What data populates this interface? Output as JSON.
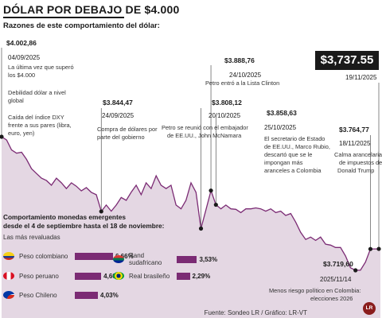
{
  "title": "DÓLAR POR DEBAJO DE $4.000",
  "subtitle": "Razones de este comportamiento del dólar:",
  "current_price": "$3,737.55",
  "annotations": {
    "start": {
      "value": "$4.002,86",
      "date": "04/09/2025",
      "notes": [
        "La última vez que superó",
        "los $4.000",
        "",
        "Debilidad dólar a nivel",
        "global",
        "",
        "Caída del índice DXY",
        "frente a sus pares (libra,",
        "euro, yen)"
      ]
    },
    "sep24": {
      "value": "$3.844,47",
      "date": "24/09/2025",
      "notes": [
        "Compra de dólares por",
        "parte del gobierno"
      ]
    },
    "oct20": {
      "value": "$3.808,12",
      "date": "20/10/2025",
      "notes": [
        "Petro se reunió con el embajador",
        "de EE.UU., John McNamara"
      ]
    },
    "oct24": {
      "value": "$3.888,76",
      "date": "24/10/2025",
      "notes": [
        "Petro entró a la Lista Clinton"
      ]
    },
    "oct25": {
      "value": "$3.858,63",
      "date": "25/10/2025",
      "notes": [
        "El secretario de Estado",
        "de EE.UU., Marco Rubio,",
        "descartó que se le",
        "impongan más",
        "aranceles a Colombia"
      ]
    },
    "nov18": {
      "value": "$3.764,77",
      "date": "18/11/2025",
      "notes": [
        "Calma arancelaria",
        "de impuestos de",
        "Donald Trump"
      ]
    },
    "nov19": {
      "date": "19/11/2025"
    },
    "nov14": {
      "value": "$3.719,60",
      "date": "2025/11/14",
      "notes": [
        "Menos riesgo político en Colombia:",
        "elecciones 2026"
      ]
    }
  },
  "emerging": {
    "title_line1": "Comportamiento monedas emergentes",
    "title_line2": "desde el 4 de septiembre hasta el 18 de noviembre:",
    "subtitle": "Las más revaluadas",
    "bar_color": "#7b2b74",
    "items": [
      {
        "name": "Peso colombiano",
        "value": 6.66,
        "label": "6,66%"
      },
      {
        "name": "Peso peruano",
        "value": 4.6,
        "label": "4,60%"
      },
      {
        "name": "Peso Chileno",
        "value": 4.03,
        "label": "4,03%"
      },
      {
        "name": "Rand sudafricano",
        "value": 3.53,
        "label": "3,53%"
      },
      {
        "name": "Real brasileño",
        "value": 2.29,
        "label": "2,29%"
      }
    ]
  },
  "source": "Fuente: Sondeo LR / Gráfico: LR-VT",
  "logo": "LR",
  "chart_data": {
    "type": "area",
    "title": "DÓLAR POR DEBAJO DE $4.000",
    "line_color": "#7b2b74",
    "fill_color": "#e4d7e3",
    "x_start": "04/09/2025",
    "x_end": "19/11/2025",
    "values": [
      4002.86,
      3996,
      3975,
      3968,
      3970,
      3955,
      3935,
      3925,
      3915,
      3910,
      3900,
      3915,
      3905,
      3893,
      3905,
      3898,
      3888,
      3895,
      3885,
      3880,
      3844.47,
      3858,
      3845,
      3858,
      3874,
      3868,
      3885,
      3900,
      3880,
      3905,
      3893,
      3920,
      3900,
      3893,
      3900,
      3858,
      3850,
      3868,
      3905,
      3885,
      3808.12,
      3848,
      3888.76,
      3858.63,
      3850,
      3858,
      3850,
      3849,
      3842,
      3850,
      3850,
      3852,
      3850,
      3845,
      3850,
      3842,
      3845,
      3836,
      3840,
      3822,
      3800,
      3785,
      3790,
      3783,
      3790,
      3775,
      3773,
      3768,
      3768,
      3750,
      3725,
      3719.6,
      3720,
      3737,
      3764.77,
      3765,
      3765
    ],
    "markers": [
      {
        "date": "04/09/2025",
        "value": 4002.86
      },
      {
        "date": "24/09/2025",
        "value": 3844.47
      },
      {
        "date": "20/10/2025",
        "value": 3808.12
      },
      {
        "date": "24/10/2025",
        "value": 3888.76
      },
      {
        "date": "25/10/2025",
        "value": 3858.63
      },
      {
        "date": "14/11/2025",
        "value": 3719.6
      },
      {
        "date": "18/11/2025",
        "value": 3764.77
      }
    ]
  }
}
